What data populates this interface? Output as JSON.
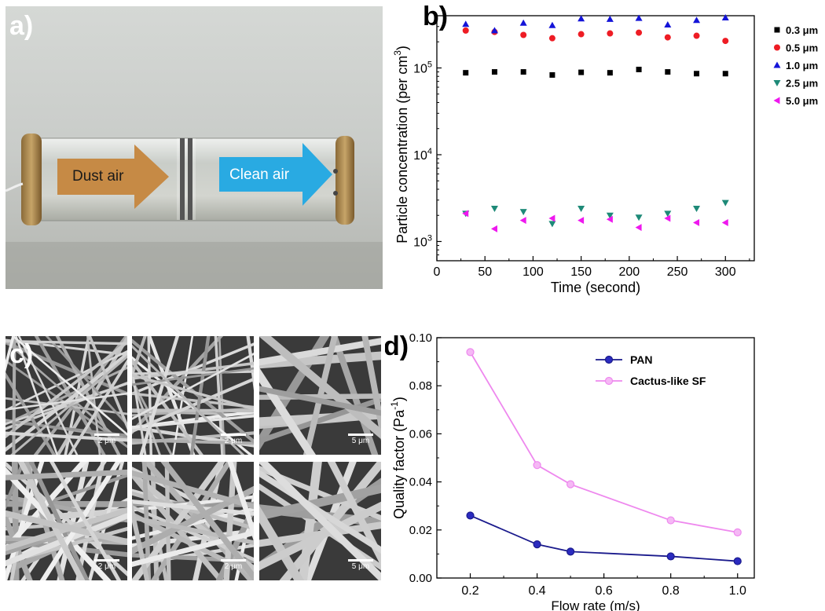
{
  "panels": {
    "a": {
      "letter": "a)",
      "dust_label": "Dust air",
      "clean_label": "Clean air"
    },
    "b": {
      "letter": "b)"
    },
    "c": {
      "letter": "c)",
      "scalebars": [
        "2 μm",
        "2 μm",
        "5 μm",
        "2 μm",
        "2 μm",
        "5 μm"
      ]
    },
    "d": {
      "letter": "d)"
    }
  },
  "colors": {
    "black": "#000000",
    "red": "#ee1c24",
    "blue": "#1414d8",
    "teal": "#1e8a78",
    "magenta": "#ee18ee",
    "pan": "#1a1a8c",
    "pan_fill": "#2b2bbf",
    "sf": "#ee88ee",
    "sf_fill": "#f5b8f5",
    "dust_arrow": "#c68a45",
    "clean_arrow": "#29aae2"
  },
  "chart_data": [
    {
      "panel": "b",
      "type": "scatter",
      "xlabel": "Time (second)",
      "ylabel": "Particle concentration (per cm",
      "ylabel_sup": "3",
      "ylabel_close": ")",
      "ylog": true,
      "xlim": [
        0,
        330
      ],
      "ylim": [
        600,
        400000
      ],
      "x_ticks": [
        "0",
        "50",
        "100",
        "150",
        "200",
        "250",
        "300"
      ],
      "x_tick_values": [
        0,
        50,
        100,
        150,
        200,
        250,
        300
      ],
      "y_ticks": [
        {
          "base": "10",
          "exp": "3",
          "value": 1000
        },
        {
          "base": "10",
          "exp": "4",
          "value": 10000
        },
        {
          "base": "10",
          "exp": "5",
          "value": 100000
        }
      ],
      "legend_position": "right",
      "x": [
        30,
        60,
        90,
        120,
        150,
        180,
        210,
        240,
        270,
        300
      ],
      "series": [
        {
          "name": "0.3 μm",
          "marker": "square",
          "color": "#000000",
          "values": [
            88000,
            90000,
            90000,
            83000,
            89000,
            88000,
            96000,
            90000,
            86000,
            86000
          ]
        },
        {
          "name": "0.5 μm",
          "marker": "circle",
          "color": "#ee1c24",
          "values": [
            270000,
            260000,
            240000,
            220000,
            245000,
            250000,
            255000,
            225000,
            235000,
            205000
          ]
        },
        {
          "name": "1.0 μm",
          "marker": "triangle-up",
          "color": "#1414d8",
          "values": [
            320000,
            270000,
            330000,
            310000,
            370000,
            365000,
            375000,
            315000,
            355000,
            380000
          ]
        },
        {
          "name": "2.5 μm",
          "marker": "triangle-down",
          "color": "#1e8a78",
          "values": [
            2100,
            2400,
            2200,
            1600,
            2400,
            2000,
            1900,
            2100,
            2400,
            2800
          ]
        },
        {
          "name": "5.0 μm",
          "marker": "triangle-left",
          "color": "#ee18ee",
          "values": [
            2100,
            1400,
            1750,
            1850,
            1750,
            1800,
            1450,
            1850,
            1650,
            1650
          ]
        }
      ]
    },
    {
      "panel": "d",
      "type": "line",
      "xlabel": "Flow rate (m/s)",
      "ylabel": "Quality factor (Pa",
      "ylabel_sup": "-1",
      "ylabel_close": ")",
      "xlim": [
        0.1,
        1.05
      ],
      "ylim": [
        0.0,
        0.1
      ],
      "x_ticks": [
        "0.2",
        "0.4",
        "0.6",
        "0.8",
        "1.0"
      ],
      "x_tick_values": [
        0.2,
        0.4,
        0.6,
        0.8,
        1.0
      ],
      "y_ticks": [
        "0.00",
        "0.02",
        "0.04",
        "0.06",
        "0.08",
        "0.10"
      ],
      "y_tick_values": [
        0.0,
        0.02,
        0.04,
        0.06,
        0.08,
        0.1
      ],
      "legend_position": "top-right",
      "x": [
        0.2,
        0.4,
        0.5,
        0.8,
        1.0
      ],
      "series": [
        {
          "name": "PAN",
          "color": "#1a1a8c",
          "fill": "#2b2bbf",
          "values": [
            0.026,
            0.014,
            0.011,
            0.009,
            0.007
          ]
        },
        {
          "name": "Cactus-like SF",
          "color": "#ee88ee",
          "fill": "#f5b8f5",
          "values": [
            0.094,
            0.047,
            0.039,
            0.024,
            0.019
          ]
        }
      ]
    }
  ]
}
